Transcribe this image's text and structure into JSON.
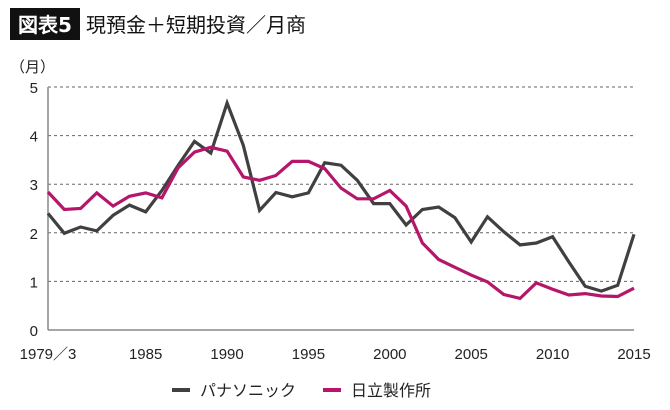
{
  "chart_data": {
    "type": "line",
    "badge": "図表5",
    "title": "現預金＋短期投資／月商",
    "ylabel": "（月）",
    "xlabel": "",
    "ylim": [
      0,
      5
    ],
    "xlim": [
      1979,
      2015
    ],
    "yticks": [
      "0",
      "1",
      "2",
      "3",
      "4",
      "5"
    ],
    "xticks": [
      {
        "value": 1979,
        "label": "1979／3"
      },
      {
        "value": 1985,
        "label": "1985"
      },
      {
        "value": 1990,
        "label": "1990"
      },
      {
        "value": 1995,
        "label": "1995"
      },
      {
        "value": 2000,
        "label": "2000"
      },
      {
        "value": 2005,
        "label": "2005"
      },
      {
        "value": 2010,
        "label": "2010"
      },
      {
        "value": 2015,
        "label": "2015"
      }
    ],
    "grid": "horizontal-dashed",
    "legend_position": "bottom",
    "x": [
      1979,
      1980,
      1981,
      1982,
      1983,
      1984,
      1985,
      1986,
      1987,
      1988,
      1989,
      1990,
      1991,
      1992,
      1993,
      1994,
      1995,
      1996,
      1997,
      1998,
      1999,
      2000,
      2001,
      2002,
      2003,
      2004,
      2005,
      2006,
      2007,
      2008,
      2009,
      2010,
      2011,
      2012,
      2013,
      2014,
      2015
    ],
    "series": [
      {
        "name": "パナソニック",
        "color": "#404040",
        "values": [
          2.4,
          1.99,
          2.12,
          2.04,
          2.36,
          2.57,
          2.43,
          2.87,
          3.39,
          3.88,
          3.64,
          4.67,
          3.8,
          2.46,
          2.83,
          2.74,
          2.82,
          3.44,
          3.39,
          3.08,
          2.6,
          2.6,
          2.16,
          2.48,
          2.53,
          2.31,
          1.81,
          2.33,
          2.02,
          1.75,
          1.79,
          1.92,
          1.4,
          0.9,
          0.8,
          0.92,
          1.97
        ]
      },
      {
        "name": "日立製作所",
        "color": "#b5166b",
        "values": [
          2.84,
          2.48,
          2.5,
          2.82,
          2.55,
          2.75,
          2.82,
          2.72,
          3.34,
          3.66,
          3.76,
          3.68,
          3.15,
          3.08,
          3.18,
          3.47,
          3.47,
          3.32,
          2.92,
          2.7,
          2.7,
          2.87,
          2.55,
          1.79,
          1.45,
          1.29,
          1.13,
          0.99,
          0.73,
          0.65,
          0.97,
          0.84,
          0.72,
          0.75,
          0.7,
          0.69,
          0.86
        ]
      }
    ]
  }
}
